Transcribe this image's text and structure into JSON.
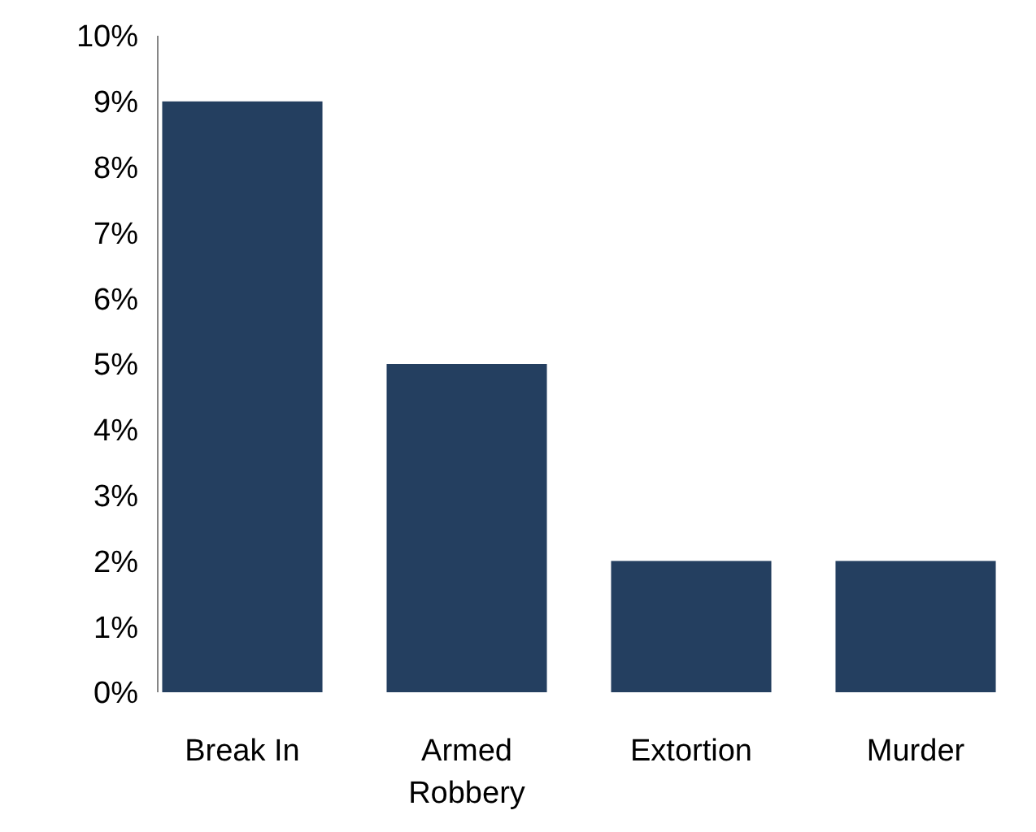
{
  "chart_data": {
    "type": "bar",
    "categories": [
      "Break In",
      "Armed Robbery",
      "Extortion",
      "Murder"
    ],
    "values": [
      9,
      5,
      2,
      2
    ],
    "color": "#243f60",
    "ylim": [
      0,
      10
    ],
    "yticks": [
      {
        "value": 0,
        "label": "0%"
      },
      {
        "value": 1,
        "label": "1%"
      },
      {
        "value": 2,
        "label": "2%"
      },
      {
        "value": 3,
        "label": "3%"
      },
      {
        "value": 4,
        "label": "4%"
      },
      {
        "value": 5,
        "label": "5%"
      },
      {
        "value": 6,
        "label": "6%"
      },
      {
        "value": 7,
        "label": "7%"
      },
      {
        "value": 8,
        "label": "8%"
      },
      {
        "value": 9,
        "label": "9%"
      },
      {
        "value": 10,
        "label": "10%"
      }
    ],
    "grid": false
  }
}
